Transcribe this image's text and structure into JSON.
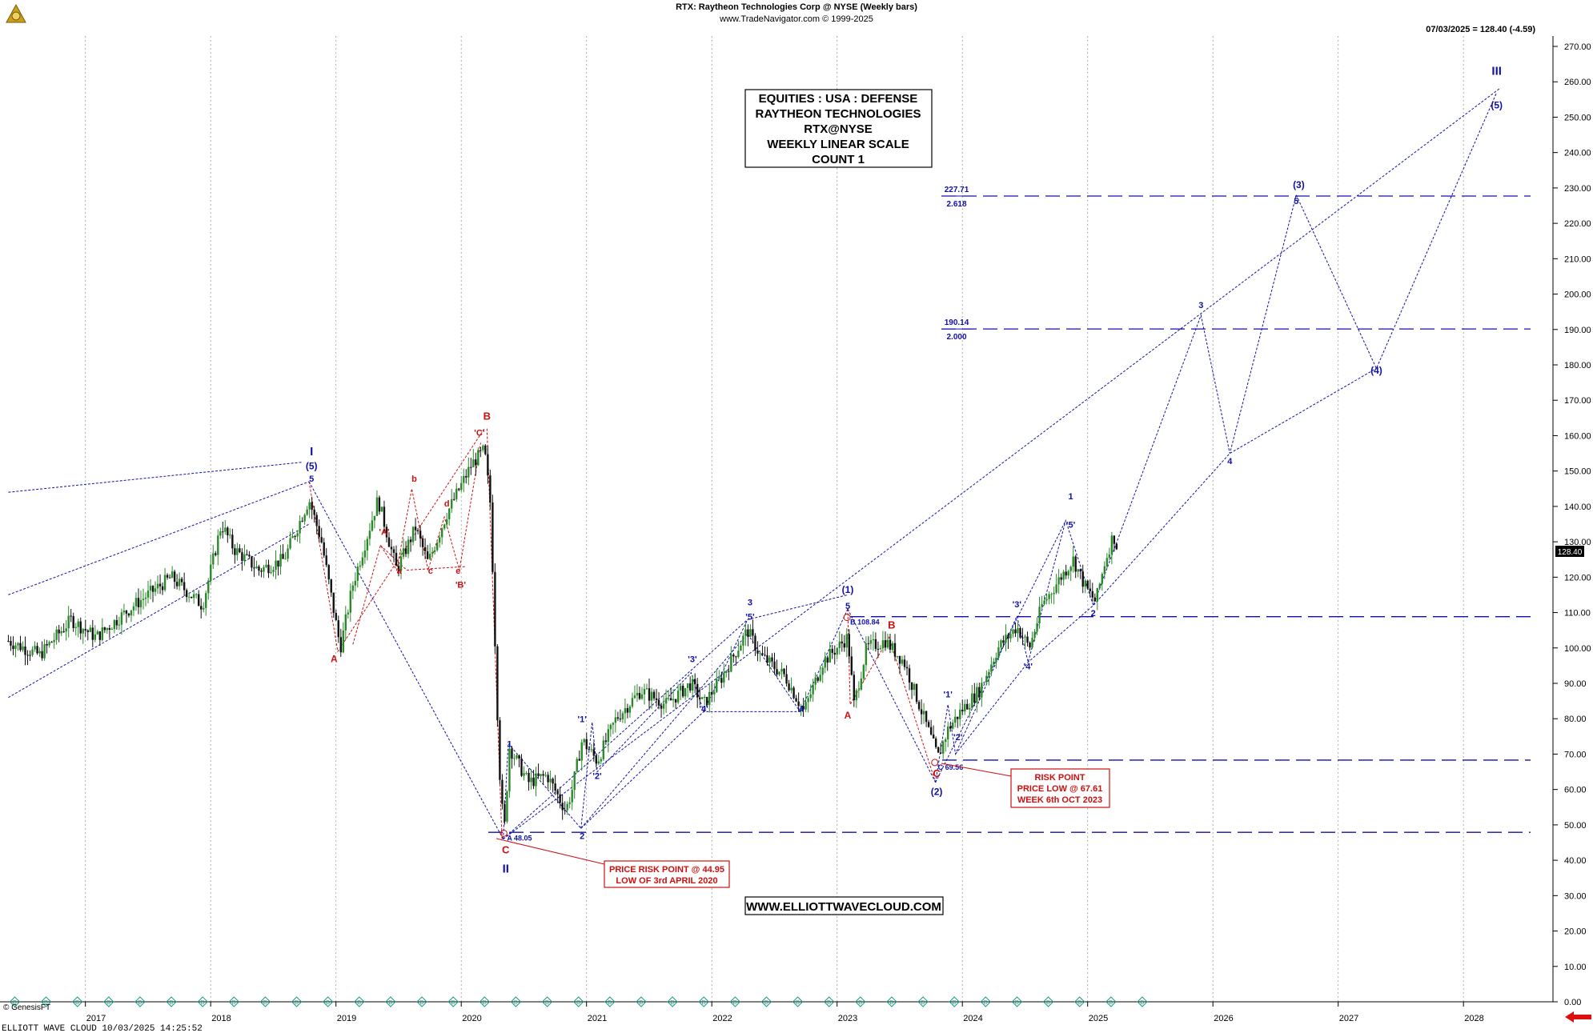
{
  "header": {
    "title": "RTX:  Raytheon Technologies Corp @ NYSE  (Weekly bars)",
    "subtitle": "www.TradeNavigator.com © 1999-2025",
    "last_quote": "07/03/2025 = 128.40 (-4.59)",
    "price_tag": "128.40"
  },
  "info_box": [
    "EQUITIES : USA : DEFENSE",
    "RAYTHEON TECHNOLOGIES",
    "RTX@NYSE",
    "WEEKLY LINEAR SCALE",
    "COUNT 1"
  ],
  "website": "WWW.ELLIOTTWAVECLOUD.COM",
  "footer": {
    "left": "ELLIOTT WAVE CLOUD    10/03/2025 14:25:52",
    "copyright": "© GenesisFT"
  },
  "risk_box_1": [
    "PRICE RISK POINT @ 44.95",
    "LOW OF 3rd APRIL 2020"
  ],
  "risk_box_2": [
    "RISK POINT",
    "PRICE LOW @ 67.61",
    "WEEK 6th OCT 2023"
  ],
  "colors": {
    "wave_blue": "#1010a8",
    "wave_red": "#cc1010",
    "candle_up": "#2a8a2a",
    "candle_down": "#111111",
    "diamond": "#1a9a8a"
  },
  "chart_data": {
    "type": "candlestick",
    "y_axis": {
      "ylim": [
        0,
        280
      ],
      "ticks": [
        "270.00",
        "260.00",
        "250.00",
        "240.00",
        "230.00",
        "220.00",
        "210.00",
        "200.00",
        "190.00",
        "180.00",
        "170.00",
        "160.00",
        "150.00",
        "140.00",
        "130.00",
        "120.00",
        "110.00",
        "100.00",
        "90.00",
        "80.00",
        "70.00",
        "60.00",
        "50.00",
        "40.00",
        "30.00",
        "20.00",
        "10.00",
        "0.00"
      ]
    },
    "x_axis": {
      "range": [
        2016.3,
        2028.4
      ],
      "years": [
        "2017",
        "2018",
        "2019",
        "2020",
        "2021",
        "2022",
        "2023",
        "2024",
        "2025",
        "2026",
        "2027",
        "2028"
      ]
    },
    "weekly_close_series": [
      {
        "t": 2016.3,
        "v": 102
      },
      {
        "t": 2016.55,
        "v": 98
      },
      {
        "t": 2016.8,
        "v": 108
      },
      {
        "t": 2017.0,
        "v": 103
      },
      {
        "t": 2017.3,
        "v": 112
      },
      {
        "t": 2017.6,
        "v": 120
      },
      {
        "t": 2017.85,
        "v": 112
      },
      {
        "t": 2018.0,
        "v": 135
      },
      {
        "t": 2018.1,
        "v": 128
      },
      {
        "t": 2018.3,
        "v": 122
      },
      {
        "t": 2018.5,
        "v": 125
      },
      {
        "t": 2018.7,
        "v": 142
      },
      {
        "t": 2018.8,
        "v": 130
      },
      {
        "t": 2018.95,
        "v": 100
      },
      {
        "t": 2019.05,
        "v": 118
      },
      {
        "t": 2019.25,
        "v": 142
      },
      {
        "t": 2019.4,
        "v": 122
      },
      {
        "t": 2019.55,
        "v": 134
      },
      {
        "t": 2019.65,
        "v": 124
      },
      {
        "t": 2019.8,
        "v": 138
      },
      {
        "t": 2020.0,
        "v": 152
      },
      {
        "t": 2020.1,
        "v": 156
      },
      {
        "t": 2020.15,
        "v": 140
      },
      {
        "t": 2020.2,
        "v": 85
      },
      {
        "t": 2020.23,
        "v": 58
      },
      {
        "t": 2020.26,
        "v": 49
      },
      {
        "t": 2020.3,
        "v": 72
      },
      {
        "t": 2020.45,
        "v": 62
      },
      {
        "t": 2020.6,
        "v": 64
      },
      {
        "t": 2020.75,
        "v": 54
      },
      {
        "t": 2020.8,
        "v": 60
      },
      {
        "t": 2020.88,
        "v": 74
      },
      {
        "t": 2021.0,
        "v": 68
      },
      {
        "t": 2021.15,
        "v": 80
      },
      {
        "t": 2021.35,
        "v": 88
      },
      {
        "t": 2021.55,
        "v": 84
      },
      {
        "t": 2021.75,
        "v": 90
      },
      {
        "t": 2021.85,
        "v": 84
      },
      {
        "t": 2022.0,
        "v": 92
      },
      {
        "t": 2022.2,
        "v": 105
      },
      {
        "t": 2022.3,
        "v": 98
      },
      {
        "t": 2022.5,
        "v": 92
      },
      {
        "t": 2022.65,
        "v": 82
      },
      {
        "t": 2022.8,
        "v": 96
      },
      {
        "t": 2023.0,
        "v": 103
      },
      {
        "t": 2023.05,
        "v": 84
      },
      {
        "t": 2023.15,
        "v": 100
      },
      {
        "t": 2023.3,
        "v": 102
      },
      {
        "t": 2023.45,
        "v": 96
      },
      {
        "t": 2023.55,
        "v": 86
      },
      {
        "t": 2023.65,
        "v": 76
      },
      {
        "t": 2023.72,
        "v": 69
      },
      {
        "t": 2023.8,
        "v": 77
      },
      {
        "t": 2023.9,
        "v": 82
      },
      {
        "t": 2024.05,
        "v": 88
      },
      {
        "t": 2024.2,
        "v": 100
      },
      {
        "t": 2024.35,
        "v": 106
      },
      {
        "t": 2024.45,
        "v": 100
      },
      {
        "t": 2024.55,
        "v": 112
      },
      {
        "t": 2024.7,
        "v": 120
      },
      {
        "t": 2024.8,
        "v": 125
      },
      {
        "t": 2024.9,
        "v": 117
      },
      {
        "t": 2024.98,
        "v": 113
      },
      {
        "t": 2025.05,
        "v": 124
      },
      {
        "t": 2025.12,
        "v": 132
      },
      {
        "t": 2025.15,
        "v": 128.4
      }
    ],
    "horizontal_levels": [
      {
        "value": 227.71,
        "label": "227.71",
        "ratio": "2.618"
      },
      {
        "value": 190.14,
        "label": "190.14",
        "ratio": "2.000"
      },
      {
        "value": 108.84,
        "label": "",
        "ratio": ""
      },
      {
        "value": 68.3,
        "label": "",
        "ratio": ""
      },
      {
        "value": 47.9,
        "label": "",
        "ratio": ""
      }
    ],
    "price_annotations": [
      {
        "t": 2020.28,
        "v": 46.5,
        "text": "A 48.05"
      },
      {
        "t": 2023.02,
        "v": 107.5,
        "text": "B 108.84"
      },
      {
        "t": 2023.72,
        "v": 66.5,
        "text": "C 69.56"
      }
    ],
    "wave_labels": [
      {
        "t": 2018.72,
        "v": 154.5,
        "text": "I",
        "color": "blue",
        "size": 15
      },
      {
        "t": 2018.72,
        "v": 150.5,
        "text": "(5)",
        "color": "blue",
        "size": 12
      },
      {
        "t": 2018.72,
        "v": 147,
        "text": "5",
        "color": "blue",
        "size": 11
      },
      {
        "t": 2018.9,
        "v": 96,
        "text": "A",
        "color": "red",
        "size": 12
      },
      {
        "t": 2019.3,
        "v": 132,
        "text": "'A'",
        "color": "red",
        "size": 11
      },
      {
        "t": 2019.42,
        "v": 121,
        "text": "a",
        "color": "red",
        "size": 11
      },
      {
        "t": 2019.54,
        "v": 147,
        "text": "b",
        "color": "red",
        "size": 11
      },
      {
        "t": 2019.67,
        "v": 121,
        "text": "c",
        "color": "red",
        "size": 11
      },
      {
        "t": 2019.8,
        "v": 140,
        "text": "d",
        "color": "red",
        "size": 11
      },
      {
        "t": 2019.89,
        "v": 121,
        "text": "e",
        "color": "red",
        "size": 11
      },
      {
        "t": 2019.91,
        "v": 117,
        "text": "'B'",
        "color": "red",
        "size": 11
      },
      {
        "t": 2020.06,
        "v": 160,
        "text": "'C'",
        "color": "red",
        "size": 11
      },
      {
        "t": 2020.12,
        "v": 164.5,
        "text": "B",
        "color": "red",
        "size": 13
      },
      {
        "t": 2020.3,
        "v": 72,
        "text": "1",
        "color": "blue",
        "size": 11
      },
      {
        "t": 2020.27,
        "v": 42,
        "text": "C",
        "color": "red",
        "size": 13
      },
      {
        "t": 2020.27,
        "v": 36.5,
        "text": "II",
        "color": "blue",
        "size": 15
      },
      {
        "t": 2020.88,
        "v": 46,
        "text": "2",
        "color": "blue",
        "size": 11
      },
      {
        "t": 2020.88,
        "v": 79,
        "text": "'1'",
        "color": "blue",
        "size": 11
      },
      {
        "t": 2021.0,
        "v": 63,
        "text": "'2'",
        "color": "blue",
        "size": 11
      },
      {
        "t": 2021.76,
        "v": 96,
        "text": "'3'",
        "color": "blue",
        "size": 11
      },
      {
        "t": 2021.85,
        "v": 82,
        "text": "'4'",
        "color": "blue",
        "size": 11
      },
      {
        "t": 2022.22,
        "v": 108,
        "text": "'5'",
        "color": "blue",
        "size": 11
      },
      {
        "t": 2022.22,
        "v": 112,
        "text": "3",
        "color": "blue",
        "size": 11
      },
      {
        "t": 2022.63,
        "v": 82,
        "text": "4",
        "color": "blue",
        "size": 11
      },
      {
        "t": 2023.0,
        "v": 115.5,
        "text": "(1)",
        "color": "blue",
        "size": 12
      },
      {
        "t": 2023.0,
        "v": 111,
        "text": "5",
        "color": "blue",
        "size": 11
      },
      {
        "t": 2023.0,
        "v": 80,
        "text": "A",
        "color": "red",
        "size": 12
      },
      {
        "t": 2023.35,
        "v": 105.5,
        "text": "B",
        "color": "red",
        "size": 13
      },
      {
        "t": 2023.71,
        "v": 63.5,
        "text": "C",
        "color": "red",
        "size": 13
      },
      {
        "t": 2023.71,
        "v": 58.5,
        "text": "(2)",
        "color": "blue",
        "size": 12
      },
      {
        "t": 2023.8,
        "v": 86,
        "text": "'1'",
        "color": "blue",
        "size": 11
      },
      {
        "t": 2023.88,
        "v": 74,
        "text": "'2'",
        "color": "blue",
        "size": 11
      },
      {
        "t": 2024.35,
        "v": 111.5,
        "text": "'3'",
        "color": "blue",
        "size": 11
      },
      {
        "t": 2024.44,
        "v": 94,
        "text": "'4'",
        "color": "blue",
        "size": 11
      },
      {
        "t": 2024.78,
        "v": 142,
        "text": "1",
        "color": "blue",
        "size": 11
      },
      {
        "t": 2024.78,
        "v": 134,
        "text": "'5'",
        "color": "blue",
        "size": 11
      },
      {
        "t": 2024.96,
        "v": 109,
        "text": "2",
        "color": "blue",
        "size": 11
      },
      {
        "t": 2025.82,
        "v": 196,
        "text": "3",
        "color": "blue",
        "size": 11
      },
      {
        "t": 2026.05,
        "v": 152,
        "text": "4",
        "color": "blue",
        "size": 11
      },
      {
        "t": 2026.6,
        "v": 230,
        "text": "(3)",
        "color": "blue",
        "size": 12
      },
      {
        "t": 2026.58,
        "v": 225.5,
        "text": "5",
        "color": "blue",
        "size": 11
      },
      {
        "t": 2027.22,
        "v": 177.5,
        "text": "(4)",
        "color": "blue",
        "size": 12
      },
      {
        "t": 2028.18,
        "v": 252.5,
        "text": "(5)",
        "color": "blue",
        "size": 12
      },
      {
        "t": 2028.18,
        "v": 262,
        "text": "III",
        "color": "blue",
        "size": 15
      }
    ],
    "wave_paths": [
      {
        "color": "blue",
        "pts": [
          [
            2016.3,
            144
          ],
          [
            2018.65,
            152.5
          ]
        ]
      },
      {
        "color": "blue",
        "pts": [
          [
            2016.3,
            115
          ],
          [
            2018.7,
            147
          ]
        ]
      },
      {
        "color": "blue",
        "pts": [
          [
            2016.3,
            86
          ],
          [
            2018.7,
            135
          ]
        ]
      },
      {
        "color": "blue",
        "pts": [
          [
            2018.7,
            147
          ],
          [
            2020.25,
            46
          ]
        ]
      },
      {
        "color": "red",
        "pts": [
          [
            2018.7,
            147
          ],
          [
            2018.93,
            99
          ],
          [
            2020.1,
            162
          ]
        ]
      },
      {
        "color": "red",
        "pts": [
          [
            2019.05,
            101
          ],
          [
            2019.27,
            129
          ],
          [
            2019.4,
            122
          ],
          [
            2019.52,
            145
          ],
          [
            2019.65,
            122
          ],
          [
            2019.78,
            137
          ],
          [
            2019.9,
            122
          ],
          [
            2020.07,
            158
          ]
        ]
      },
      {
        "color": "red",
        "pts": [
          [
            2019.27,
            129
          ],
          [
            2019.48,
            122
          ],
          [
            2019.95,
            123
          ]
        ]
      },
      {
        "color": "red",
        "pts": [
          [
            2020.12,
            162
          ],
          [
            2020.24,
            46
          ]
        ]
      },
      {
        "color": "blue",
        "pts": [
          [
            2020.25,
            46
          ],
          [
            2020.29,
            73
          ],
          [
            2020.87,
            49
          ],
          [
            2022.2,
            104
          ],
          [
            2022.62,
            82
          ],
          [
            2023.0,
            111
          ]
        ]
      },
      {
        "color": "blue",
        "pts": [
          [
            2020.25,
            46
          ],
          [
            2022.2,
            108
          ],
          [
            2023.0,
            115
          ]
        ]
      },
      {
        "color": "blue",
        "pts": [
          [
            2020.87,
            49
          ],
          [
            2020.96,
            79
          ],
          [
            2021.0,
            65
          ],
          [
            2021.75,
            93
          ],
          [
            2021.85,
            82
          ],
          [
            2022.2,
            108
          ]
        ]
      },
      {
        "color": "blue",
        "pts": [
          [
            2020.87,
            49
          ],
          [
            2021.85,
            82
          ],
          [
            2022.62,
            82
          ]
        ]
      },
      {
        "color": "red",
        "pts": [
          [
            2023.0,
            111
          ],
          [
            2023.02,
            84
          ],
          [
            2023.33,
            103
          ],
          [
            2023.7,
            62
          ]
        ]
      },
      {
        "color": "blue",
        "pts": [
          [
            2023.0,
            111
          ],
          [
            2023.7,
            62
          ]
        ]
      },
      {
        "color": "blue",
        "pts": [
          [
            2023.7,
            62
          ],
          [
            2023.8,
            84
          ],
          [
            2023.86,
            70
          ],
          [
            2024.35,
            109
          ],
          [
            2024.44,
            96
          ],
          [
            2024.74,
            136
          ],
          [
            2024.96,
            112
          ],
          [
            2025.82,
            194
          ],
          [
            2026.05,
            155
          ],
          [
            2026.58,
            228
          ],
          [
            2027.22,
            179
          ],
          [
            2028.18,
            257
          ]
        ]
      },
      {
        "color": "blue",
        "pts": [
          [
            2023.7,
            62
          ],
          [
            2024.74,
            136
          ]
        ]
      },
      {
        "color": "blue",
        "pts": [
          [
            2023.86,
            70
          ],
          [
            2024.44,
            96
          ],
          [
            2024.96,
            112
          ],
          [
            2026.05,
            155
          ],
          [
            2027.22,
            179
          ]
        ]
      },
      {
        "color": "blue",
        "pts": [
          [
            2020.25,
            46
          ],
          [
            2028.2,
            258
          ]
        ]
      }
    ]
  }
}
